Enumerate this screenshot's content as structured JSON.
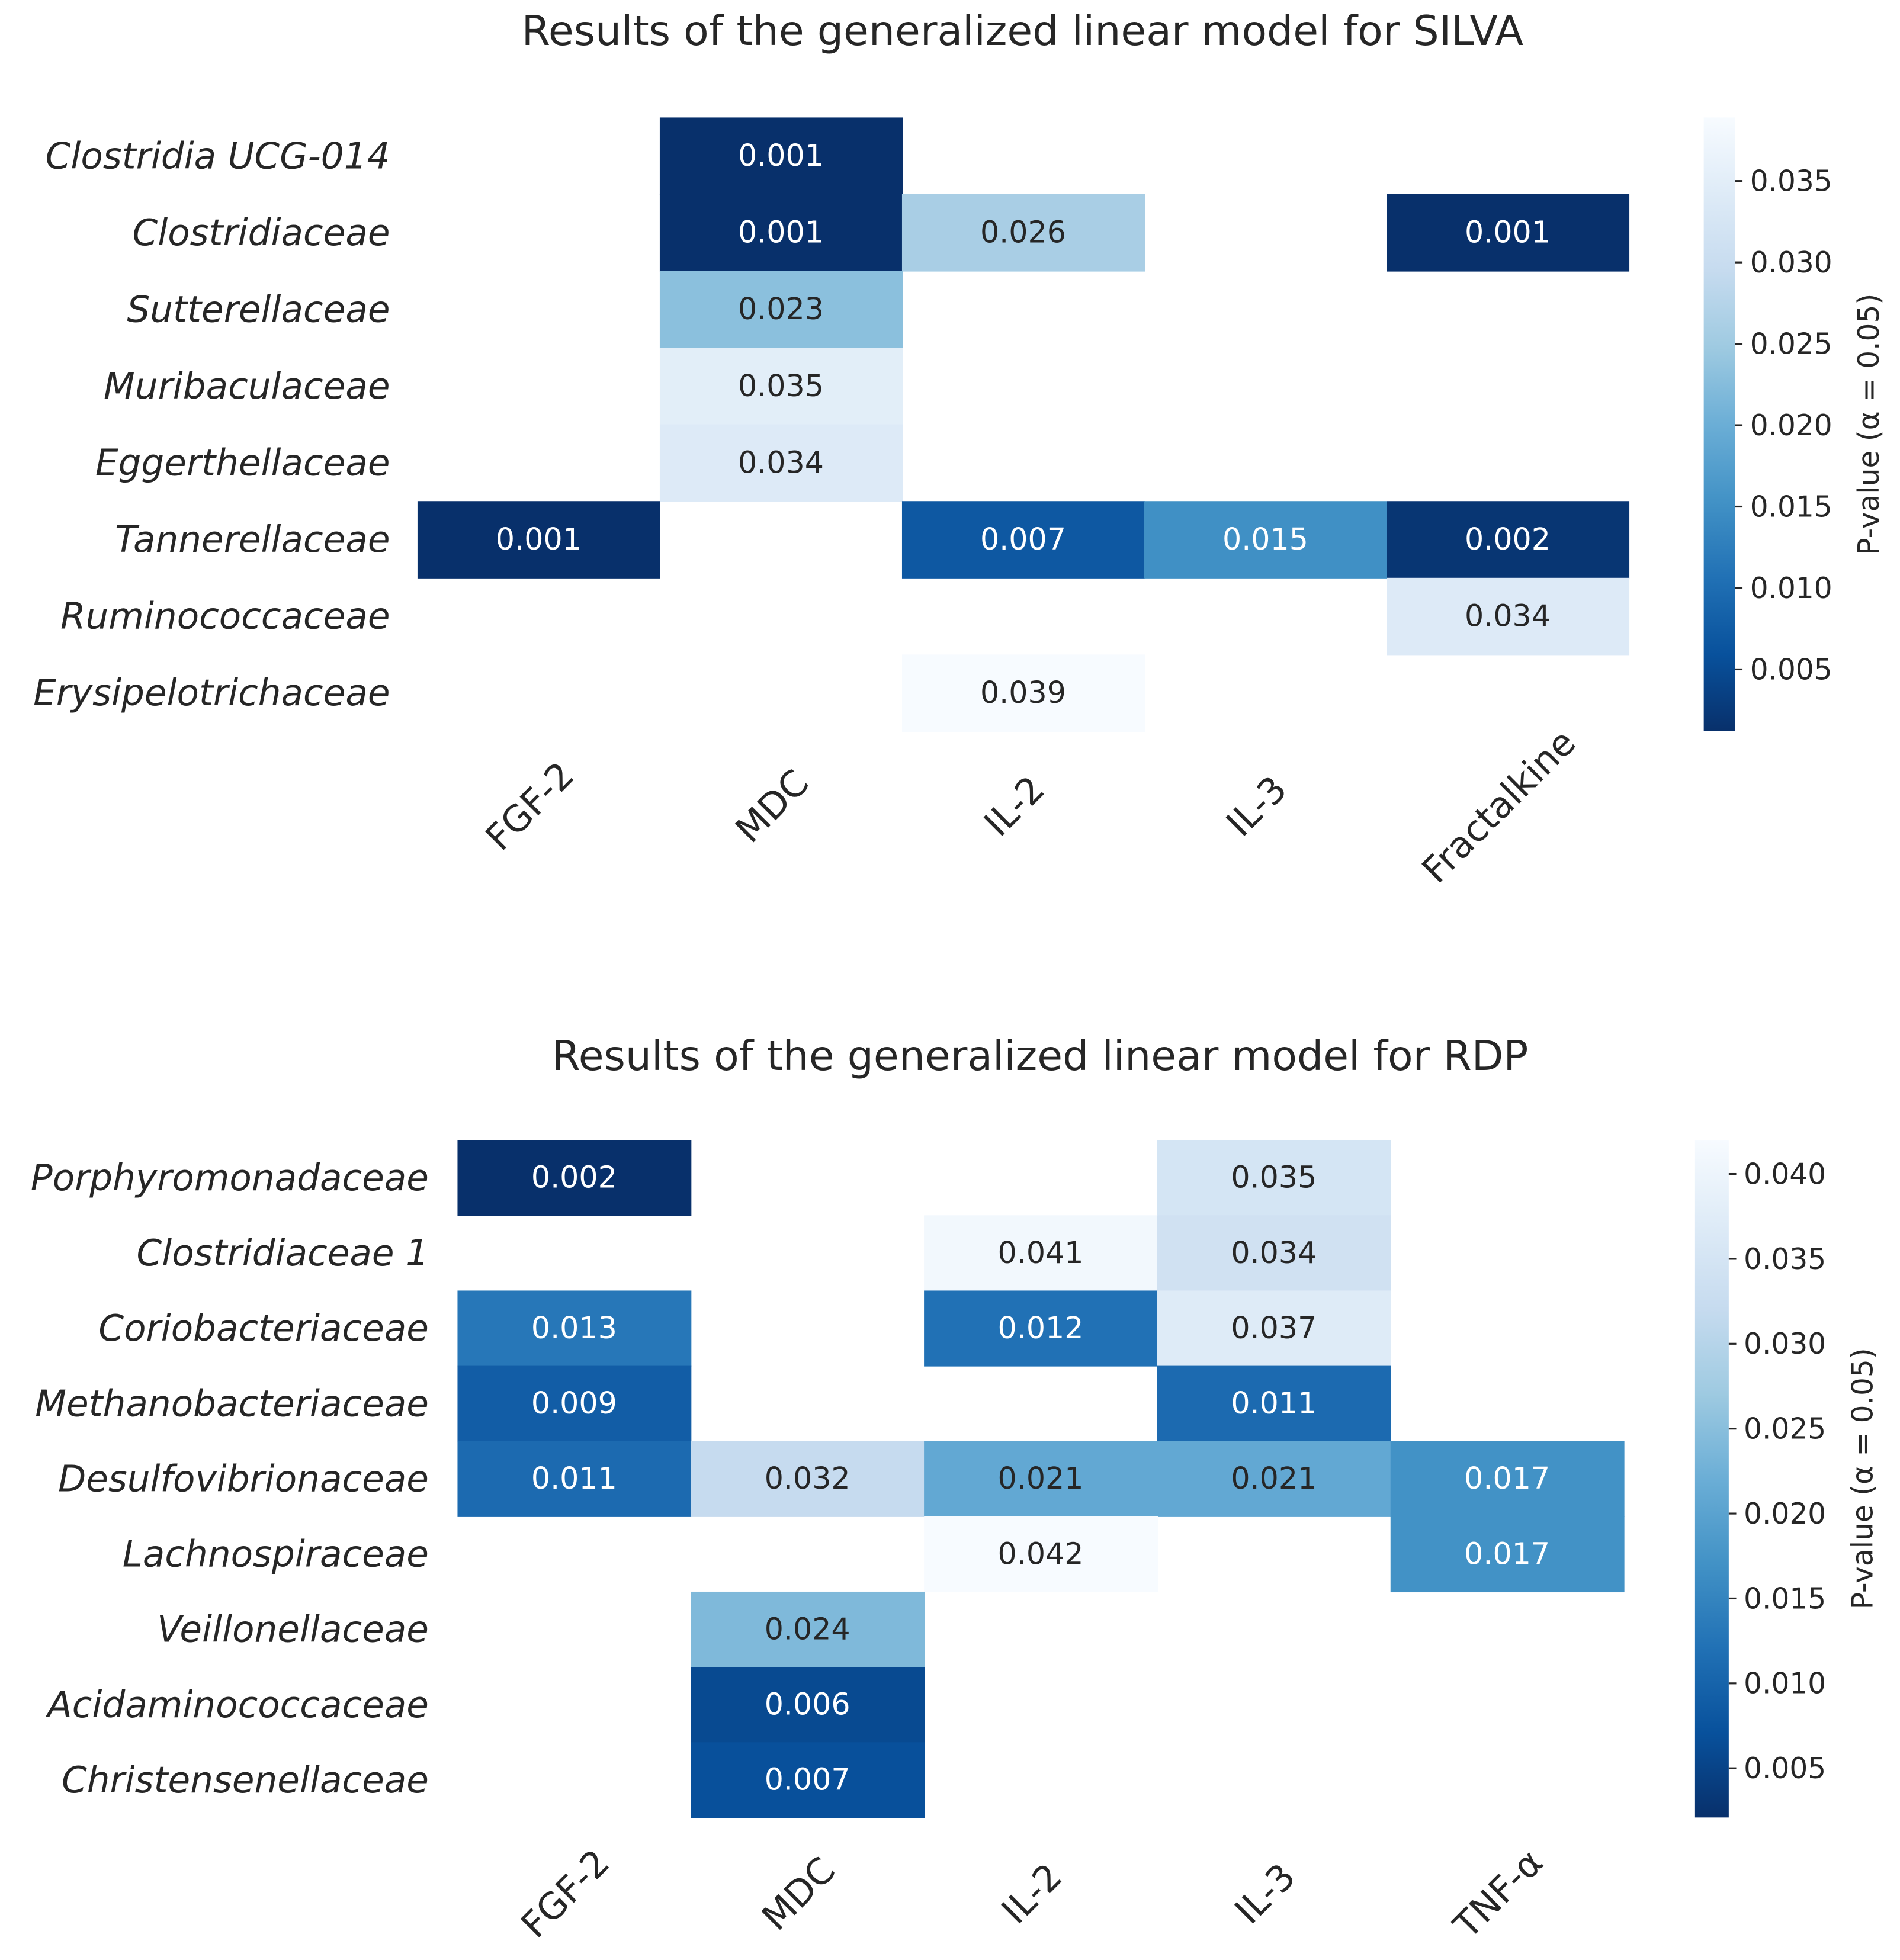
{
  "chart_data": [
    {
      "type": "heatmap",
      "title": "Results of the generalized linear model for SILVA",
      "rows": [
        "Clostridia UCG-014",
        "Clostridiaceae",
        "Sutterellaceae",
        "Muribaculaceae",
        "Eggerthellaceae",
        "Tannerellaceae",
        "Ruminococcaceae",
        "Erysipelotrichaceae"
      ],
      "columns": [
        "FGF-2",
        "MDC",
        "IL-2",
        "IL-3",
        "Fractalkine"
      ],
      "values": [
        [
          null,
          "0.001",
          null,
          null,
          null
        ],
        [
          null,
          "0.001",
          "0.026",
          null,
          "0.001"
        ],
        [
          null,
          "0.023",
          null,
          null,
          null
        ],
        [
          null,
          "0.035",
          null,
          null,
          null
        ],
        [
          null,
          "0.034",
          null,
          null,
          null
        ],
        [
          "0.001",
          null,
          "0.007",
          "0.015",
          "0.002"
        ],
        [
          null,
          null,
          null,
          null,
          "0.034"
        ],
        [
          null,
          null,
          "0.039",
          null,
          null
        ]
      ],
      "colorbar": {
        "label": "P-value (α = 0.05)",
        "ticks": [
          "0.005",
          "0.010",
          "0.015",
          "0.020",
          "0.025",
          "0.030",
          "0.035"
        ],
        "range": [
          0.0012,
          0.0389
        ],
        "colormap": "Blues_r"
      }
    },
    {
      "type": "heatmap",
      "title": "Results of the generalized linear model for RDP",
      "rows": [
        "Porphyromonadaceae",
        "Clostridiaceae 1",
        "Coriobacteriaceae",
        "Methanobacteriaceae",
        "Desulfovibrionaceae",
        "Lachnospiraceae",
        "Veillonellaceae",
        "Acidaminococcaceae",
        "Christensenellaceae"
      ],
      "columns": [
        "FGF-2",
        "MDC",
        "IL-2",
        "IL-3",
        "TNF-α"
      ],
      "values": [
        [
          "0.002",
          null,
          null,
          "0.035",
          null
        ],
        [
          null,
          null,
          "0.041",
          "0.034",
          null
        ],
        [
          "0.013",
          null,
          "0.012",
          "0.037",
          null
        ],
        [
          "0.009",
          null,
          null,
          "0.011",
          null
        ],
        [
          "0.011",
          "0.032",
          "0.021",
          "0.021",
          "0.017"
        ],
        [
          null,
          null,
          "0.042",
          null,
          "0.017"
        ],
        [
          null,
          "0.024",
          null,
          null,
          null
        ],
        [
          null,
          "0.006",
          null,
          null,
          null
        ],
        [
          null,
          "0.007",
          null,
          null,
          null
        ]
      ],
      "colorbar": {
        "label": "P-value (α = 0.05)",
        "ticks": [
          "0.005",
          "0.010",
          "0.015",
          "0.020",
          "0.025",
          "0.030",
          "0.035",
          "0.040"
        ],
        "range": [
          0.0021,
          0.042
        ],
        "colormap": "Blues_r"
      }
    }
  ]
}
